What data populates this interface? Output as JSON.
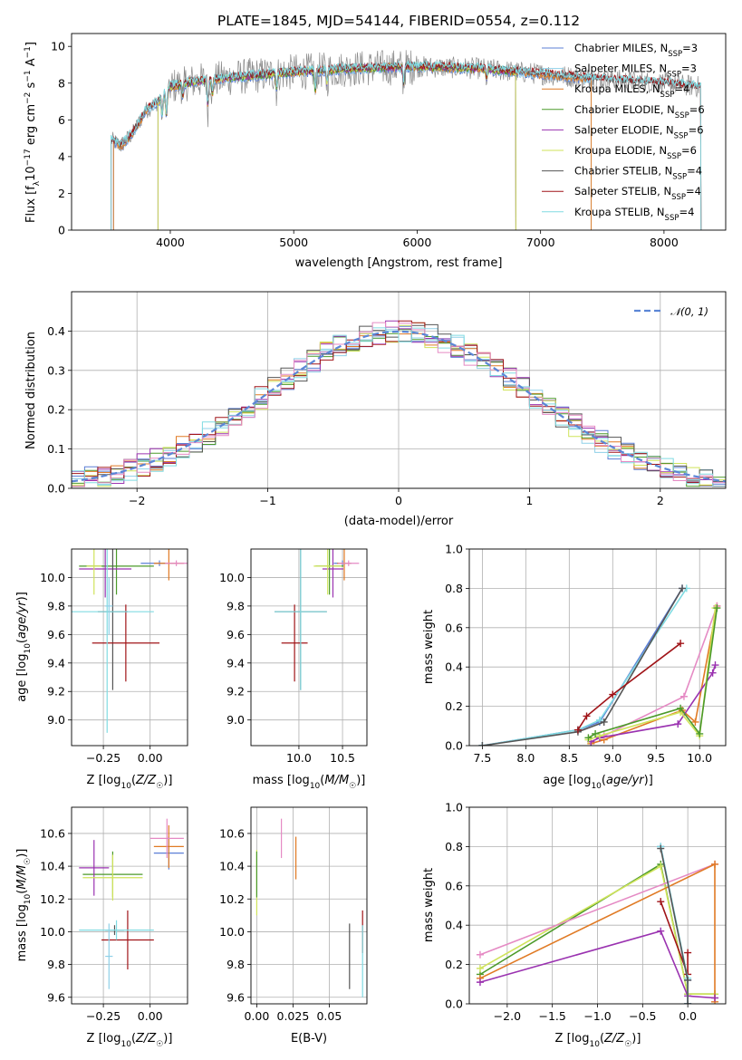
{
  "figure": {
    "title": "PLATE=1845, MJD=54144, FIBERID=0554, z=0.112"
  },
  "colors": {
    "Chabrier MILES": "#5b7fd6",
    "Salpeter MILES": "#8fd0e8",
    "Kroupa MILES": "#e07a24",
    "Chabrier ELODIE": "#4c9a2a",
    "Salpeter ELODIE": "#9a32b0",
    "Kroupa ELODIE": "#cfe35a",
    "Chabrier STELIB": "#555555",
    "Salpeter STELIB": "#a01418",
    "Kroupa STELIB": "#80dbe2",
    "pink": "#e58ac4",
    "gaussian": "#5b86d6",
    "grid": "#b0b0b0"
  },
  "chart_data": [
    {
      "id": "spectrum",
      "type": "line",
      "title": "PLATE=1845, MJD=54144, FIBERID=0554, z=0.112",
      "xlabel": "wavelength [Angstrom, rest frame]",
      "ylabel": "Flux [f_λ10^-17 erg cm^-2 s^-1 A^-1]",
      "xlim": [
        3200,
        8500
      ],
      "ylim": [
        0,
        10.7
      ],
      "xticks": [
        4000,
        5000,
        6000,
        7000,
        8000
      ],
      "yticks": [
        0,
        2,
        4,
        6,
        8,
        10
      ],
      "grid": false,
      "legend_position": "right",
      "legend": [
        {
          "label": "Chabrier MILES, N",
          "sub": "SSP",
          "tail": "=3"
        },
        {
          "label": "Salpeter MILES, N",
          "sub": "SSP",
          "tail": "=3"
        },
        {
          "label": "Kroupa MILES, N",
          "sub": "SSP",
          "tail": "=4"
        },
        {
          "label": "Chabrier ELODIE, N",
          "sub": "SSP",
          "tail": "=6"
        },
        {
          "label": "Salpeter ELODIE, N",
          "sub": "SSP",
          "tail": "=6"
        },
        {
          "label": "Kroupa ELODIE, N",
          "sub": "SSP",
          "tail": "=6"
        },
        {
          "label": "Chabrier STELIB, N",
          "sub": "SSP",
          "tail": "=4"
        },
        {
          "label": "Salpeter STELIB, N",
          "sub": "SSP",
          "tail": "=4"
        },
        {
          "label": "Kroupa STELIB, N",
          "sub": "SSP",
          "tail": "=4"
        }
      ],
      "continuum": [
        [
          3520,
          4.9
        ],
        [
          3600,
          4.6
        ],
        [
          3700,
          5.3
        ],
        [
          3800,
          6.5
        ],
        [
          3900,
          7.0
        ],
        [
          4000,
          7.8
        ],
        [
          4200,
          8.1
        ],
        [
          4500,
          8.3
        ],
        [
          5000,
          8.6
        ],
        [
          5500,
          8.8
        ],
        [
          6000,
          8.9
        ],
        [
          6500,
          8.8
        ],
        [
          7000,
          8.5
        ],
        [
          7500,
          8.2
        ],
        [
          8000,
          8.0
        ],
        [
          8300,
          7.8
        ]
      ],
      "absorption_lines": [
        [
          3934,
          1.2
        ],
        [
          3969,
          1.5
        ],
        [
          4102,
          0.8
        ],
        [
          4304,
          1.6
        ],
        [
          4341,
          1.0
        ],
        [
          4861,
          0.9
        ],
        [
          5175,
          1.3
        ],
        [
          5270,
          0.8
        ],
        [
          5890,
          1.0
        ],
        [
          6563,
          0.6
        ],
        [
          8542,
          0.5
        ]
      ]
    },
    {
      "id": "residuals",
      "type": "line",
      "xlabel": "(data-model)/error",
      "ylabel": "Normed distribution",
      "xlim": [
        -2.5,
        2.5
      ],
      "ylim": [
        0,
        0.5
      ],
      "xticks": [
        -2,
        -1,
        0,
        1,
        2
      ],
      "yticks": [
        0.0,
        0.1,
        0.2,
        0.3,
        0.4
      ],
      "grid": true,
      "legend_position": "top-right",
      "legend": "𝒩(0, 1)",
      "gaussian": {
        "mean": 0,
        "sigma": 1
      }
    },
    {
      "id": "age_vs_Z",
      "type": "scatter",
      "xlabel": "Z [log10(Z/Z☉)]",
      "ylabel": "age [log10(age/yr)]",
      "xlim": [
        -0.42,
        0.2
      ],
      "ylim": [
        8.82,
        10.2
      ],
      "xticks": [
        -0.25,
        0.0
      ],
      "yticks": [
        9.0,
        9.2,
        9.4,
        9.6,
        9.8,
        10.0
      ],
      "points": [
        {
          "s": "Chabrier MILES",
          "x": 0.05,
          "y": 10.1,
          "xerr": 0.1,
          "yerr": 0.02
        },
        {
          "s": "Kroupa MILES",
          "x": 0.1,
          "y": 10.1,
          "xerr": 0.08,
          "yerr": 0.12
        },
        {
          "s": "pink",
          "x": 0.14,
          "y": 10.1,
          "xerr": 0.06,
          "yerr": 0.02
        },
        {
          "s": "Chabrier ELODIE",
          "x": -0.18,
          "y": 10.08,
          "xerr": 0.2,
          "yerr": 0.2
        },
        {
          "s": "Salpeter ELODIE",
          "x": -0.24,
          "y": 10.06,
          "xerr": 0.14,
          "yerr": 0.2
        },
        {
          "s": "Kroupa ELODIE",
          "x": -0.3,
          "y": 10.08,
          "xerr": 0.04,
          "yerr": 0.2
        },
        {
          "s": "Chabrier STELIB",
          "x": -0.2,
          "y": 9.76,
          "xerr": 0.08,
          "yerr": 0.55
        },
        {
          "s": "Salpeter STELIB",
          "x": -0.13,
          "y": 9.54,
          "xerr": 0.18,
          "yerr": 0.27
        },
        {
          "s": "Kroupa STELIB",
          "x": -0.23,
          "y": 9.76,
          "xerr": 0.25,
          "yerr": 0.85
        },
        {
          "s": "Salpeter MILES",
          "x": -0.22,
          "y": 9.8,
          "xerr": 0.02,
          "yerr": 0.2
        }
      ]
    },
    {
      "id": "age_vs_mass",
      "type": "scatter",
      "xlabel": "mass [log10(M/M☉)]",
      "ylabel": "",
      "xlim": [
        9.45,
        10.78
      ],
      "ylim": [
        8.82,
        10.2
      ],
      "xticks": [
        10.0,
        10.5
      ],
      "yticks": [
        9.0,
        9.2,
        9.4,
        9.6,
        9.8,
        10.0
      ],
      "points": [
        {
          "s": "Chabrier MILES",
          "x": 10.5,
          "y": 10.1,
          "xerr": 0.1,
          "yerr": 0.02
        },
        {
          "s": "Kroupa MILES",
          "x": 10.52,
          "y": 10.1,
          "xerr": 0.08,
          "yerr": 0.12
        },
        {
          "s": "pink",
          "x": 10.57,
          "y": 10.1,
          "xerr": 0.12,
          "yerr": 0.02
        },
        {
          "s": "Chabrier ELODIE",
          "x": 10.35,
          "y": 10.08,
          "xerr": 0.16,
          "yerr": 0.2
        },
        {
          "s": "Salpeter ELODIE",
          "x": 10.39,
          "y": 10.06,
          "xerr": 0.12,
          "yerr": 0.2
        },
        {
          "s": "Kroupa ELODIE",
          "x": 10.33,
          "y": 10.08,
          "xerr": 0.16,
          "yerr": 0.2
        },
        {
          "s": "Chabrier STELIB",
          "x": 10.02,
          "y": 9.76,
          "xerr": 0.3,
          "yerr": 0.55
        },
        {
          "s": "Salpeter STELIB",
          "x": 9.95,
          "y": 9.54,
          "xerr": 0.15,
          "yerr": 0.27
        },
        {
          "s": "Kroupa STELIB",
          "x": 10.02,
          "y": 9.76,
          "xerr": 0.3,
          "yerr": 0.55
        }
      ]
    },
    {
      "id": "weight_vs_age",
      "type": "line",
      "xlabel": "age [log10(age/yr)]",
      "ylabel": "mass weight",
      "xlim": [
        7.35,
        10.3
      ],
      "ylim": [
        0,
        1.0
      ],
      "xticks": [
        7.5,
        8.0,
        8.5,
        9.0,
        9.5,
        10.0
      ],
      "yticks": [
        0.0,
        0.2,
        0.4,
        0.6,
        0.8,
        1.0
      ],
      "grid": true,
      "series": [
        {
          "s": "Chabrier MILES",
          "x": [
            7.5,
            8.6,
            8.85,
            9.8
          ],
          "y": [
            0.0,
            0.08,
            0.12,
            0.8
          ]
        },
        {
          "s": "Kroupa STELIB",
          "x": [
            7.5,
            8.6,
            8.85,
            9.85
          ],
          "y": [
            0.0,
            0.08,
            0.13,
            0.8
          ]
        },
        {
          "s": "Chabrier STELIB",
          "x": [
            7.5,
            8.6,
            8.9,
            9.8
          ],
          "y": [
            0.0,
            0.07,
            0.12,
            0.8
          ]
        },
        {
          "s": "Salpeter STELIB",
          "x": [
            8.6,
            8.7,
            9.0,
            9.78
          ],
          "y": [
            0.08,
            0.15,
            0.26,
            0.52
          ]
        },
        {
          "s": "Kroupa MILES",
          "x": [
            8.75,
            8.9,
            9.8,
            9.95,
            10.2
          ],
          "y": [
            0.01,
            0.03,
            0.18,
            0.12,
            0.71
          ]
        },
        {
          "s": "pink",
          "x": [
            8.75,
            8.9,
            9.82,
            10.2
          ],
          "y": [
            0.02,
            0.05,
            0.25,
            0.71
          ]
        },
        {
          "s": "Salpeter ELODIE",
          "x": [
            8.75,
            8.85,
            9.75,
            10.15,
            10.18
          ],
          "y": [
            0.02,
            0.04,
            0.11,
            0.37,
            0.41
          ]
        },
        {
          "s": "Kroupa ELODIE",
          "x": [
            8.72,
            8.85,
            9.78,
            10.0,
            10.18
          ],
          "y": [
            0.03,
            0.05,
            0.17,
            0.05,
            0.7
          ]
        },
        {
          "s": "Chabrier ELODIE",
          "x": [
            8.72,
            8.8,
            9.78,
            10.0,
            10.2
          ],
          "y": [
            0.04,
            0.06,
            0.19,
            0.06,
            0.7
          ]
        }
      ]
    },
    {
      "id": "mass_vs_Z",
      "type": "scatter",
      "xlabel": "Z [log10(Z/Z☉)]",
      "ylabel": "mass [log10(M/M☉)]",
      "xlim": [
        -0.42,
        0.2
      ],
      "ylim": [
        9.56,
        10.76
      ],
      "xticks": [
        -0.25,
        0.0
      ],
      "yticks": [
        9.6,
        9.8,
        10.0,
        10.2,
        10.4,
        10.6
      ],
      "points": [
        {
          "s": "Chabrier MILES",
          "x": 0.1,
          "y": 10.48,
          "xerr": 0.08,
          "yerr": 0.1
        },
        {
          "s": "Kroupa MILES",
          "x": 0.1,
          "y": 10.52,
          "xerr": 0.08,
          "yerr": 0.13
        },
        {
          "s": "pink",
          "x": 0.09,
          "y": 10.57,
          "xerr": 0.09,
          "yerr": 0.12
        },
        {
          "s": "Chabrier ELODIE",
          "x": -0.2,
          "y": 10.35,
          "xerr": 0.16,
          "yerr": 0.14
        },
        {
          "s": "Salpeter ELODIE",
          "x": -0.3,
          "y": 10.39,
          "xerr": 0.08,
          "yerr": 0.17
        },
        {
          "s": "Kroupa ELODIE",
          "x": -0.2,
          "y": 10.33,
          "xerr": 0.16,
          "yerr": 0.14
        },
        {
          "s": "Chabrier STELIB",
          "x": -0.19,
          "y": 10.01,
          "xerr": 0.05,
          "yerr": 0.03
        },
        {
          "s": "Salpeter STELIB",
          "x": -0.12,
          "y": 9.95,
          "xerr": 0.14,
          "yerr": 0.18
        },
        {
          "s": "Kroupa STELIB",
          "x": -0.18,
          "y": 10.01,
          "xerr": 0.2,
          "yerr": 0.06
        },
        {
          "s": "Salpeter MILES",
          "x": -0.22,
          "y": 9.85,
          "xerr": 0.02,
          "yerr": 0.2
        }
      ]
    },
    {
      "id": "mass_vs_EBV",
      "type": "scatter",
      "xlabel": "E(B-V)",
      "ylabel": "",
      "xlim": [
        -0.004,
        0.076
      ],
      "ylim": [
        9.56,
        10.76
      ],
      "xticks": [
        0.0,
        0.025,
        0.05
      ],
      "xtick_labels": [
        "0.00",
        "0.025",
        "0.05"
      ],
      "yticks": [
        9.6,
        9.8,
        10.0,
        10.2,
        10.4,
        10.6
      ],
      "points": [
        {
          "s": "Kroupa ELODIE",
          "x": 0.0,
          "y": 10.3,
          "xerr": 0,
          "yerr": 0.2
        },
        {
          "s": "Chabrier ELODIE",
          "x": 0.0,
          "y": 10.35,
          "xerr": 0,
          "yerr": 0.14
        },
        {
          "s": "pink",
          "x": 0.017,
          "y": 10.57,
          "xerr": 0,
          "yerr": 0.12
        },
        {
          "s": "Kroupa MILES",
          "x": 0.027,
          "y": 10.45,
          "xerr": 0,
          "yerr": 0.13
        },
        {
          "s": "Chabrier STELIB",
          "x": 0.064,
          "y": 9.85,
          "xerr": 0,
          "yerr": 0.2
        },
        {
          "s": "Salpeter STELIB",
          "x": 0.073,
          "y": 10.0,
          "xerr": 0,
          "yerr": 0.13
        },
        {
          "s": "Kroupa STELIB",
          "x": 0.073,
          "y": 9.82,
          "xerr": 0,
          "yerr": 0.22
        }
      ]
    },
    {
      "id": "weight_vs_Z",
      "type": "line",
      "xlabel": "Z [log10(Z/Z☉)]",
      "ylabel": "mass weight",
      "xlim": [
        -2.42,
        0.42
      ],
      "ylim": [
        0,
        1.0
      ],
      "xticks": [
        -2.0,
        -1.5,
        -1.0,
        -0.5,
        0.0
      ],
      "yticks": [
        0.0,
        0.2,
        0.4,
        0.6,
        0.8,
        1.0
      ],
      "grid": true,
      "series": [
        {
          "s": "Chabrier ELODIE",
          "x": [
            -2.3,
            -0.3,
            0.0,
            0.3
          ],
          "y": [
            0.15,
            0.71,
            0.05,
            0.05
          ]
        },
        {
          "s": "Kroupa ELODIE",
          "x": [
            -2.3,
            -0.3,
            0.0,
            0.3
          ],
          "y": [
            0.18,
            0.7,
            0.05,
            0.05
          ]
        },
        {
          "s": "pink",
          "x": [
            -2.3,
            0.3
          ],
          "y": [
            0.25,
            0.71
          ]
        },
        {
          "s": "Kroupa MILES",
          "x": [
            -2.3,
            0.3,
            0.3
          ],
          "y": [
            0.13,
            0.71,
            0.01
          ]
        },
        {
          "s": "Salpeter ELODIE",
          "x": [
            -2.3,
            -0.3,
            0.0,
            0.3
          ],
          "y": [
            0.11,
            0.37,
            0.04,
            0.03
          ]
        },
        {
          "s": "Salpeter STELIB",
          "x": [
            -0.3,
            0.0,
            0.0
          ],
          "y": [
            0.52,
            0.15,
            0.26
          ]
        },
        {
          "s": "Chabrier MILES",
          "x": [
            -0.3,
            0.0,
            0.0
          ],
          "y": [
            0.8,
            0.12,
            0.0
          ]
        },
        {
          "s": "Kroupa STELIB",
          "x": [
            -0.3,
            0.0,
            0.0
          ],
          "y": [
            0.8,
            0.13,
            0.0
          ]
        },
        {
          "s": "Chabrier STELIB",
          "x": [
            -0.3,
            0.0,
            0.0
          ],
          "y": [
            0.79,
            0.12,
            0.0
          ]
        }
      ]
    }
  ]
}
